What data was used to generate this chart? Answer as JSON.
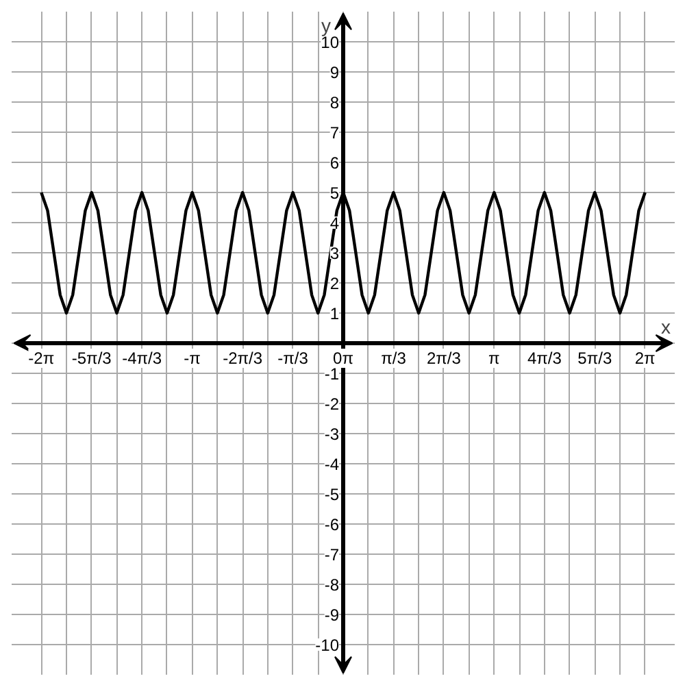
{
  "chart_data": {
    "type": "line",
    "xlabel": "x",
    "ylabel": "y",
    "x": [
      -6.283,
      -6.152,
      -6.021,
      -5.89,
      -5.76,
      -5.629,
      -5.498,
      -5.367,
      -5.236,
      -5.105,
      -4.974,
      -4.843,
      -4.712,
      -4.581,
      -4.451,
      -4.32,
      -4.189,
      -4.058,
      -3.927,
      -3.796,
      -3.665,
      -3.534,
      -3.403,
      -3.272,
      -3.142,
      -3.011,
      -2.88,
      -2.749,
      -2.618,
      -2.487,
      -2.356,
      -2.225,
      -2.094,
      -1.963,
      -1.833,
      -1.702,
      -1.571,
      -1.44,
      -1.309,
      -1.178,
      -1.047,
      -0.916,
      -0.785,
      -0.654,
      -0.524,
      -0.393,
      -0.262,
      -0.131,
      0,
      0.131,
      0.262,
      0.393,
      0.524,
      0.654,
      0.785,
      0.916,
      1.047,
      1.178,
      1.309,
      1.44,
      1.571,
      1.702,
      1.833,
      1.963,
      2.094,
      2.225,
      2.356,
      2.487,
      2.618,
      2.749,
      2.88,
      3.011,
      3.142,
      3.272,
      3.403,
      3.534,
      3.665,
      3.796,
      3.927,
      4.058,
      4.189,
      4.32,
      4.451,
      4.581,
      4.712,
      4.843,
      4.974,
      5.105,
      5.236,
      5.367,
      5.498,
      5.629,
      5.76,
      5.89,
      6.021,
      6.152,
      6.283
    ],
    "series": [
      {
        "color": "#000000",
        "values": [
          5,
          4.4,
          3,
          1.6,
          1,
          1.6,
          3,
          4.4,
          5,
          4.4,
          3,
          1.6,
          1,
          1.6,
          3,
          4.4,
          5,
          4.4,
          3,
          1.6,
          1,
          1.6,
          3,
          4.4,
          5,
          4.4,
          3,
          1.6,
          1,
          1.6,
          3,
          4.4,
          5,
          4.4,
          3,
          1.6,
          1,
          1.6,
          3,
          4.4,
          5,
          4.4,
          3,
          1.6,
          1,
          1.6,
          3,
          4.4,
          5,
          4.4,
          3,
          1.6,
          1,
          1.6,
          3,
          4.4,
          5,
          4.4,
          3,
          1.6,
          1,
          1.6,
          3,
          4.4,
          5,
          4.4,
          3,
          1.6,
          1,
          1.6,
          3,
          4.4,
          5,
          4.4,
          3,
          1.6,
          1,
          1.6,
          3,
          4.4,
          5,
          4.4,
          3,
          1.6,
          1,
          1.6,
          3,
          4.4,
          5,
          4.4,
          3,
          1.6,
          1,
          1.6,
          3,
          4.4,
          5
        ]
      }
    ],
    "xlim": [
      -6.9,
      6.9
    ],
    "ylim": [
      -11,
      11
    ],
    "xticks": [
      {
        "value": -6.283,
        "label": "-2π"
      },
      {
        "value": -5.76,
        "label": null
      },
      {
        "value": -5.236,
        "label": "-5π/3"
      },
      {
        "value": -4.712,
        "label": null
      },
      {
        "value": -4.189,
        "label": "-4π/3"
      },
      {
        "value": -3.665,
        "label": null
      },
      {
        "value": -3.142,
        "label": "-π"
      },
      {
        "value": -2.618,
        "label": null
      },
      {
        "value": -2.094,
        "label": "-2π/3"
      },
      {
        "value": -1.571,
        "label": null
      },
      {
        "value": -1.047,
        "label": "-π/3"
      },
      {
        "value": -0.524,
        "label": null
      },
      {
        "value": 0,
        "label": "0π"
      },
      {
        "value": 0.524,
        "label": null
      },
      {
        "value": 1.047,
        "label": "π/3"
      },
      {
        "value": 1.571,
        "label": null
      },
      {
        "value": 2.094,
        "label": "2π/3"
      },
      {
        "value": 2.618,
        "label": null
      },
      {
        "value": 3.142,
        "label": "π"
      },
      {
        "value": 3.665,
        "label": null
      },
      {
        "value": 4.189,
        "label": "4π/3"
      },
      {
        "value": 4.712,
        "label": null
      },
      {
        "value": 5.236,
        "label": "5π/3"
      },
      {
        "value": 5.76,
        "label": null
      },
      {
        "value": 6.283,
        "label": "2π"
      }
    ],
    "yticks": [
      -10,
      -9,
      -8,
      -7,
      -6,
      -5,
      -4,
      -3,
      -2,
      -1,
      {
        "value": 0,
        "label": null
      },
      1,
      2,
      3,
      4,
      5,
      6,
      7,
      8,
      9,
      10
    ],
    "grid": true,
    "marker": "none",
    "line_style": "solid"
  }
}
